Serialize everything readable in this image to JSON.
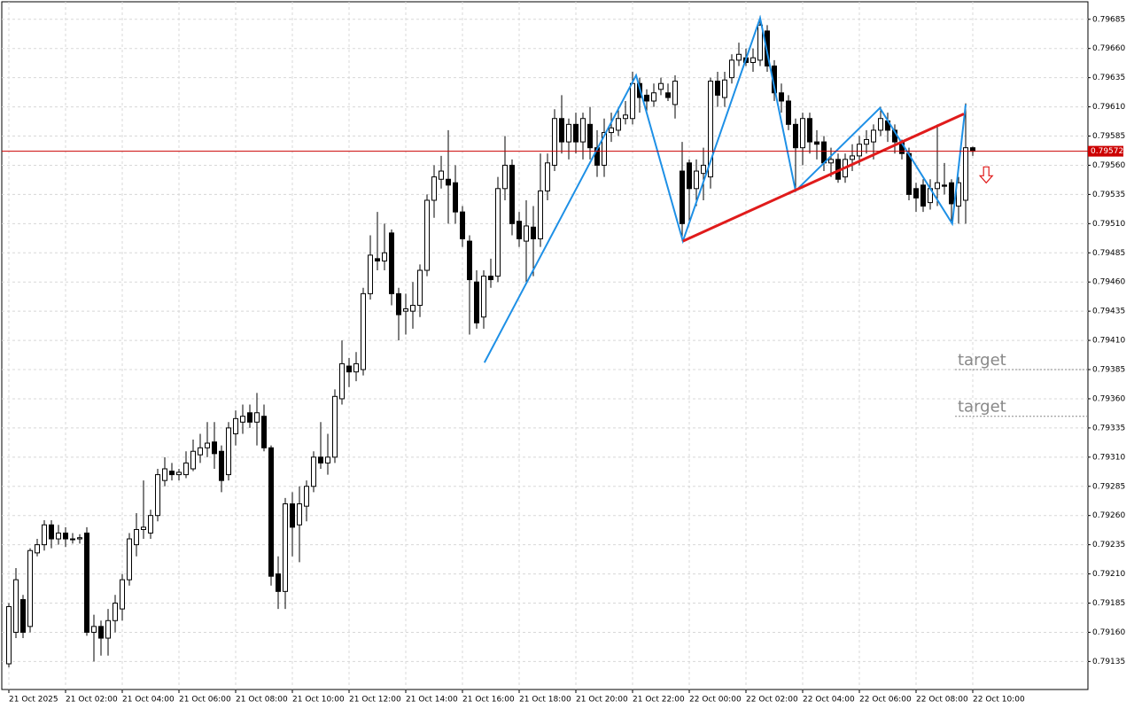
{
  "chart_data": {
    "type": "candlestick",
    "xlim": [
      -1,
      152.25
    ],
    "ylim": [
      0.79111,
      0.797
    ],
    "grid": true,
    "up_color": "#ffffff",
    "down_color": "#000000",
    "xticks": [
      {
        "value": 0,
        "label": "21 Oct 2025"
      },
      {
        "value": 8,
        "label": "21 Oct 02:00"
      },
      {
        "value": 16,
        "label": "21 Oct 04:00"
      },
      {
        "value": 24,
        "label": "21 Oct 06:00"
      },
      {
        "value": 32,
        "label": "21 Oct 08:00"
      },
      {
        "value": 40,
        "label": "21 Oct 10:00"
      },
      {
        "value": 48,
        "label": "21 Oct 12:00"
      },
      {
        "value": 56,
        "label": "21 Oct 14:00"
      },
      {
        "value": 64,
        "label": "21 Oct 16:00"
      },
      {
        "value": 72,
        "label": "21 Oct 18:00"
      },
      {
        "value": 80,
        "label": "21 Oct 20:00"
      },
      {
        "value": 88,
        "label": "21 Oct 22:00"
      },
      {
        "value": 96,
        "label": "22 Oct 00:00"
      },
      {
        "value": 104,
        "label": "22 Oct 02:00"
      },
      {
        "value": 112,
        "label": "22 Oct 04:00"
      },
      {
        "value": 120,
        "label": "22 Oct 06:00"
      },
      {
        "value": 128,
        "label": "22 Oct 08:00"
      },
      {
        "value": 136,
        "label": "22 Oct 10:00"
      }
    ],
    "yticks": [
      {
        "value": 0.79685,
        "label": "0.79685"
      },
      {
        "value": 0.7966,
        "label": "0.79660"
      },
      {
        "value": 0.79635,
        "label": "0.79635"
      },
      {
        "value": 0.7961,
        "label": "0.79610"
      },
      {
        "value": 0.79585,
        "label": "0.79585"
      },
      {
        "value": 0.7956,
        "label": "0.79560"
      },
      {
        "value": 0.79535,
        "label": "0.79535"
      },
      {
        "value": 0.7951,
        "label": "0.79510"
      },
      {
        "value": 0.79485,
        "label": "0.79485"
      },
      {
        "value": 0.7946,
        "label": "0.79460"
      },
      {
        "value": 0.79435,
        "label": "0.79435"
      },
      {
        "value": 0.7941,
        "label": "0.79410"
      },
      {
        "value": 0.79385,
        "label": "0.79385"
      },
      {
        "value": 0.7936,
        "label": "0.79360"
      },
      {
        "value": 0.79335,
        "label": "0.79335"
      },
      {
        "value": 0.7931,
        "label": "0.79310"
      },
      {
        "value": 0.79285,
        "label": "0.79285"
      },
      {
        "value": 0.7926,
        "label": "0.79260"
      },
      {
        "value": 0.79235,
        "label": "0.79235"
      },
      {
        "value": 0.7921,
        "label": "0.79210"
      },
      {
        "value": 0.79185,
        "label": "0.79185"
      },
      {
        "value": 0.7916,
        "label": "0.79160"
      },
      {
        "value": 0.79135,
        "label": "0.79135"
      }
    ],
    "current_price": {
      "value": 0.79572,
      "label": "0.79572",
      "color": "#cc0000"
    },
    "ohlc": [
      [
        0.79133,
        0.79185,
        0.7913,
        0.79182
      ],
      [
        0.7916,
        0.79215,
        0.79155,
        0.79205
      ],
      [
        0.79188,
        0.79192,
        0.79155,
        0.7916
      ],
      [
        0.79165,
        0.79232,
        0.7916,
        0.7923
      ],
      [
        0.79228,
        0.7924,
        0.79225,
        0.79235
      ],
      [
        0.79235,
        0.79256,
        0.7923,
        0.79252
      ],
      [
        0.79252,
        0.79256,
        0.79232,
        0.7924
      ],
      [
        0.7924,
        0.79252,
        0.79235,
        0.79245
      ],
      [
        0.79245,
        0.7925,
        0.79233,
        0.7924
      ],
      [
        0.7924,
        0.79245,
        0.79236,
        0.7924
      ],
      [
        0.7924,
        0.79244,
        0.79236,
        0.79241
      ],
      [
        0.79245,
        0.7925,
        0.79157,
        0.7916
      ],
      [
        0.7916,
        0.79175,
        0.79135,
        0.79165
      ],
      [
        0.79165,
        0.7917,
        0.7914,
        0.79155
      ],
      [
        0.79155,
        0.7918,
        0.7914,
        0.7917
      ],
      [
        0.7917,
        0.79192,
        0.7916,
        0.79185
      ],
      [
        0.7918,
        0.7921,
        0.7917,
        0.79205
      ],
      [
        0.79205,
        0.79245,
        0.792,
        0.7924
      ],
      [
        0.79235,
        0.79262,
        0.79225,
        0.79248
      ],
      [
        0.79248,
        0.7929,
        0.7924,
        0.7925
      ],
      [
        0.79245,
        0.79265,
        0.7924,
        0.7926
      ],
      [
        0.7926,
        0.793,
        0.79255,
        0.79295
      ],
      [
        0.7929,
        0.7931,
        0.79285,
        0.793
      ],
      [
        0.79298,
        0.79305,
        0.7929,
        0.79295
      ],
      [
        0.79295,
        0.793,
        0.7929,
        0.79297
      ],
      [
        0.79295,
        0.79315,
        0.79292,
        0.79305
      ],
      [
        0.793,
        0.79325,
        0.79298,
        0.79315
      ],
      [
        0.79312,
        0.7933,
        0.79305,
        0.79318
      ],
      [
        0.79318,
        0.7934,
        0.7931,
        0.79322
      ],
      [
        0.79323,
        0.7934,
        0.793,
        0.79313
      ],
      [
        0.79315,
        0.7932,
        0.7928,
        0.7929
      ],
      [
        0.79295,
        0.7934,
        0.7929,
        0.79335
      ],
      [
        0.7933,
        0.7935,
        0.7932,
        0.79343
      ],
      [
        0.7934,
        0.79355,
        0.7933,
        0.79345
      ],
      [
        0.79348,
        0.79355,
        0.79335,
        0.7934
      ],
      [
        0.7934,
        0.79365,
        0.7932,
        0.79348
      ],
      [
        0.79345,
        0.79355,
        0.79315,
        0.79318
      ],
      [
        0.79318,
        0.7932,
        0.792,
        0.79208
      ],
      [
        0.7921,
        0.79225,
        0.7918,
        0.79195
      ],
      [
        0.79195,
        0.79275,
        0.7918,
        0.7927
      ],
      [
        0.7927,
        0.7928,
        0.79225,
        0.7925
      ],
      [
        0.79252,
        0.79285,
        0.7922,
        0.7927
      ],
      [
        0.79268,
        0.7929,
        0.79255,
        0.79285
      ],
      [
        0.79285,
        0.79315,
        0.7928,
        0.7931
      ],
      [
        0.7931,
        0.7934,
        0.793,
        0.79305
      ],
      [
        0.79305,
        0.7933,
        0.79295,
        0.7931
      ],
      [
        0.7931,
        0.79368,
        0.79305,
        0.79362
      ],
      [
        0.7936,
        0.7941,
        0.79355,
        0.7939
      ],
      [
        0.79388,
        0.79395,
        0.7937,
        0.79383
      ],
      [
        0.79383,
        0.794,
        0.79375,
        0.7939
      ],
      [
        0.79385,
        0.79455,
        0.7938,
        0.7945
      ],
      [
        0.7945,
        0.795,
        0.79445,
        0.79483
      ],
      [
        0.7948,
        0.7952,
        0.7947,
        0.79478
      ],
      [
        0.79478,
        0.7951,
        0.7947,
        0.79485
      ],
      [
        0.79502,
        0.79505,
        0.7944,
        0.7945
      ],
      [
        0.7945,
        0.79455,
        0.7941,
        0.79432
      ],
      [
        0.79435,
        0.7945,
        0.79415,
        0.79437
      ],
      [
        0.79435,
        0.7946,
        0.7942,
        0.7944
      ],
      [
        0.7944,
        0.79475,
        0.7943,
        0.7947
      ],
      [
        0.7947,
        0.79535,
        0.79465,
        0.7953
      ],
      [
        0.7953,
        0.7956,
        0.79515,
        0.7955
      ],
      [
        0.79548,
        0.79568,
        0.7954,
        0.79555
      ],
      [
        0.79548,
        0.7959,
        0.7951,
        0.79543
      ],
      [
        0.79545,
        0.7956,
        0.7951,
        0.7952
      ],
      [
        0.7952,
        0.79525,
        0.7949,
        0.79497
      ],
      [
        0.79495,
        0.795,
        0.79415,
        0.79462
      ],
      [
        0.7946,
        0.7947,
        0.7942,
        0.79425
      ],
      [
        0.7943,
        0.7947,
        0.7942,
        0.79465
      ],
      [
        0.79465,
        0.7948,
        0.79455,
        0.79462
      ],
      [
        0.79465,
        0.7955,
        0.7946,
        0.7954
      ],
      [
        0.7954,
        0.79585,
        0.7953,
        0.7956
      ],
      [
        0.7956,
        0.79565,
        0.795,
        0.7951
      ],
      [
        0.79512,
        0.7952,
        0.7949,
        0.79497
      ],
      [
        0.79495,
        0.7953,
        0.7946,
        0.79508
      ],
      [
        0.79507,
        0.79525,
        0.79465,
        0.79497
      ],
      [
        0.79497,
        0.7957,
        0.7949,
        0.79538
      ],
      [
        0.79538,
        0.7957,
        0.7953,
        0.79562
      ],
      [
        0.7956,
        0.79608,
        0.79555,
        0.796
      ],
      [
        0.796,
        0.7962,
        0.7957,
        0.7958
      ],
      [
        0.7958,
        0.796,
        0.79565,
        0.79595
      ],
      [
        0.79595,
        0.79605,
        0.7957,
        0.7958
      ],
      [
        0.7958,
        0.79605,
        0.79565,
        0.796
      ],
      [
        0.79595,
        0.7961,
        0.79565,
        0.79575
      ],
      [
        0.79575,
        0.7959,
        0.7955,
        0.7956
      ],
      [
        0.7956,
        0.796,
        0.7955,
        0.79588
      ],
      [
        0.79588,
        0.79605,
        0.7958,
        0.79592
      ],
      [
        0.7959,
        0.7961,
        0.79585,
        0.796
      ],
      [
        0.796,
        0.79615,
        0.79595,
        0.79603
      ],
      [
        0.796,
        0.7964,
        0.79595,
        0.7963
      ],
      [
        0.7963,
        0.79635,
        0.79605,
        0.79618
      ],
      [
        0.7962,
        0.79625,
        0.79605,
        0.79615
      ],
      [
        0.79615,
        0.7963,
        0.7961,
        0.79622
      ],
      [
        0.79625,
        0.79635,
        0.7962,
        0.7963
      ],
      [
        0.79622,
        0.7963,
        0.79615,
        0.79618
      ],
      [
        0.79612,
        0.79637,
        0.796,
        0.79632
      ],
      [
        0.79555,
        0.7958,
        0.79495,
        0.7951
      ],
      [
        0.79562,
        0.79565,
        0.7951,
        0.7954
      ],
      [
        0.7954,
        0.79565,
        0.79525,
        0.79555
      ],
      [
        0.79553,
        0.79575,
        0.7953,
        0.7956
      ],
      [
        0.7955,
        0.79635,
        0.7954,
        0.79632
      ],
      [
        0.79632,
        0.7964,
        0.7961,
        0.7962
      ],
      [
        0.79618,
        0.7964,
        0.7961,
        0.79633
      ],
      [
        0.79635,
        0.79655,
        0.7963,
        0.7965
      ],
      [
        0.7965,
        0.79665,
        0.79645,
        0.79655
      ],
      [
        0.79652,
        0.7966,
        0.79645,
        0.79648
      ],
      [
        0.79648,
        0.7966,
        0.7964,
        0.79652
      ],
      [
        0.7965,
        0.79688,
        0.79645,
        0.7968
      ],
      [
        0.79675,
        0.7968,
        0.7964,
        0.79645
      ],
      [
        0.79645,
        0.7965,
        0.79615,
        0.79622
      ],
      [
        0.79622,
        0.7963,
        0.79605,
        0.79615
      ],
      [
        0.79615,
        0.7962,
        0.7959,
        0.79595
      ],
      [
        0.79595,
        0.796,
        0.7954,
        0.79575
      ],
      [
        0.79575,
        0.79605,
        0.7956,
        0.796
      ],
      [
        0.796,
        0.79605,
        0.7957,
        0.7958
      ],
      [
        0.7958,
        0.7959,
        0.79565,
        0.79578
      ],
      [
        0.7958,
        0.79585,
        0.79555,
        0.79562
      ],
      [
        0.79562,
        0.79575,
        0.7955,
        0.79565
      ],
      [
        0.79565,
        0.7957,
        0.79545,
        0.79548
      ],
      [
        0.7955,
        0.7957,
        0.79545,
        0.79565
      ],
      [
        0.79565,
        0.79578,
        0.79555,
        0.79568
      ],
      [
        0.79568,
        0.79585,
        0.7956,
        0.79578
      ],
      [
        0.79578,
        0.7959,
        0.7957,
        0.79582
      ],
      [
        0.7958,
        0.79595,
        0.79565,
        0.7959
      ],
      [
        0.7959,
        0.7961,
        0.79585,
        0.796
      ],
      [
        0.79598,
        0.79605,
        0.7958,
        0.7959
      ],
      [
        0.7959,
        0.79595,
        0.7957,
        0.7958
      ],
      [
        0.7958,
        0.79582,
        0.79565,
        0.7957
      ],
      [
        0.7957,
        0.79575,
        0.7953,
        0.79535
      ],
      [
        0.7954,
        0.79545,
        0.7952,
        0.79532
      ],
      [
        0.79543,
        0.79548,
        0.7952,
        0.79525
      ],
      [
        0.79528,
        0.79548,
        0.79522,
        0.7954
      ],
      [
        0.7954,
        0.79595,
        0.79525,
        0.79545
      ],
      [
        0.79543,
        0.79562,
        0.79535,
        0.79542
      ],
      [
        0.79545,
        0.79548,
        0.7951,
        0.79527
      ],
      [
        0.79525,
        0.7955,
        0.7951,
        0.79545
      ],
      [
        0.7953,
        0.79613,
        0.7951,
        0.79575
      ],
      [
        0.79575,
        0.79576,
        0.79568,
        0.79572
      ]
    ],
    "lines": [
      {
        "color": "#1e90e6",
        "x": [
          67.1,
          88.5,
          95.1,
          106,
          111,
          122.9,
          133.1,
          135
        ],
        "y": [
          0.79391,
          0.79637,
          0.79495,
          0.79686,
          0.79538,
          0.79609,
          0.7951,
          0.79612
        ]
      },
      {
        "color": "#e01b1b",
        "x": [
          95.1,
          134.75
        ],
        "y": [
          0.79495,
          0.79604
        ]
      }
    ],
    "arrow": {
      "x": 137.9,
      "y": 0.79551,
      "color": "#e01b1b"
    },
    "annotations": [
      {
        "text": "target",
        "x": 133.5,
        "value": 0.79385
      },
      {
        "text": "target",
        "x": 133.5,
        "value": 0.79345
      }
    ]
  }
}
